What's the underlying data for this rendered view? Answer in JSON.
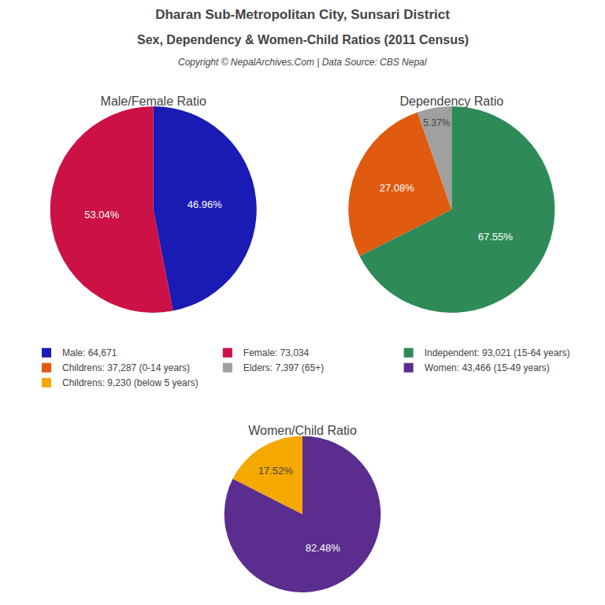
{
  "title": "Dharan Sub-Metropolitan City, Sunsari District",
  "subtitle": "Sex, Dependency & Women-Child Ratios (2011 Census)",
  "annotations": [
    "Copyright © NepalArchives.Com | Data Source: CBS Nepal"
  ],
  "legend": "center",
  "chart_data": [
    {
      "type": "pie",
      "title": "Male/Female Ratio",
      "categories": [
        "Male: 64,671",
        "Female: 73,034"
      ],
      "values": [
        46.96,
        53.04
      ],
      "value_labels": [
        "46.96%",
        "53.04%"
      ],
      "colors": [
        "#1a1ab5",
        "#cc1144"
      ],
      "data_labels": true
    },
    {
      "type": "pie",
      "title": "Dependency Ratio",
      "categories": [
        "Independent: 93,021 (15-64 years)",
        "Childrens: 37,287 (0-14 years)",
        "Elders: 7,397 (65+)"
      ],
      "values": [
        67.55,
        27.08,
        5.37
      ],
      "value_labels": [
        "67.55%",
        "27.08%",
        "5.37%"
      ],
      "colors": [
        "#2e8b57",
        "#e05a10",
        "#a0a0a0"
      ],
      "data_labels": true
    },
    {
      "type": "pie",
      "title": "Women/Child Ratio",
      "categories": [
        "Women: 43,466 (15-49 years)",
        "Childrens: 9,230 (below 5 years)"
      ],
      "values": [
        82.48,
        17.52
      ],
      "value_labels": [
        "82.48%",
        "17.52%"
      ],
      "colors": [
        "#5b2d8e",
        "#f5a800"
      ],
      "data_labels": true
    }
  ]
}
